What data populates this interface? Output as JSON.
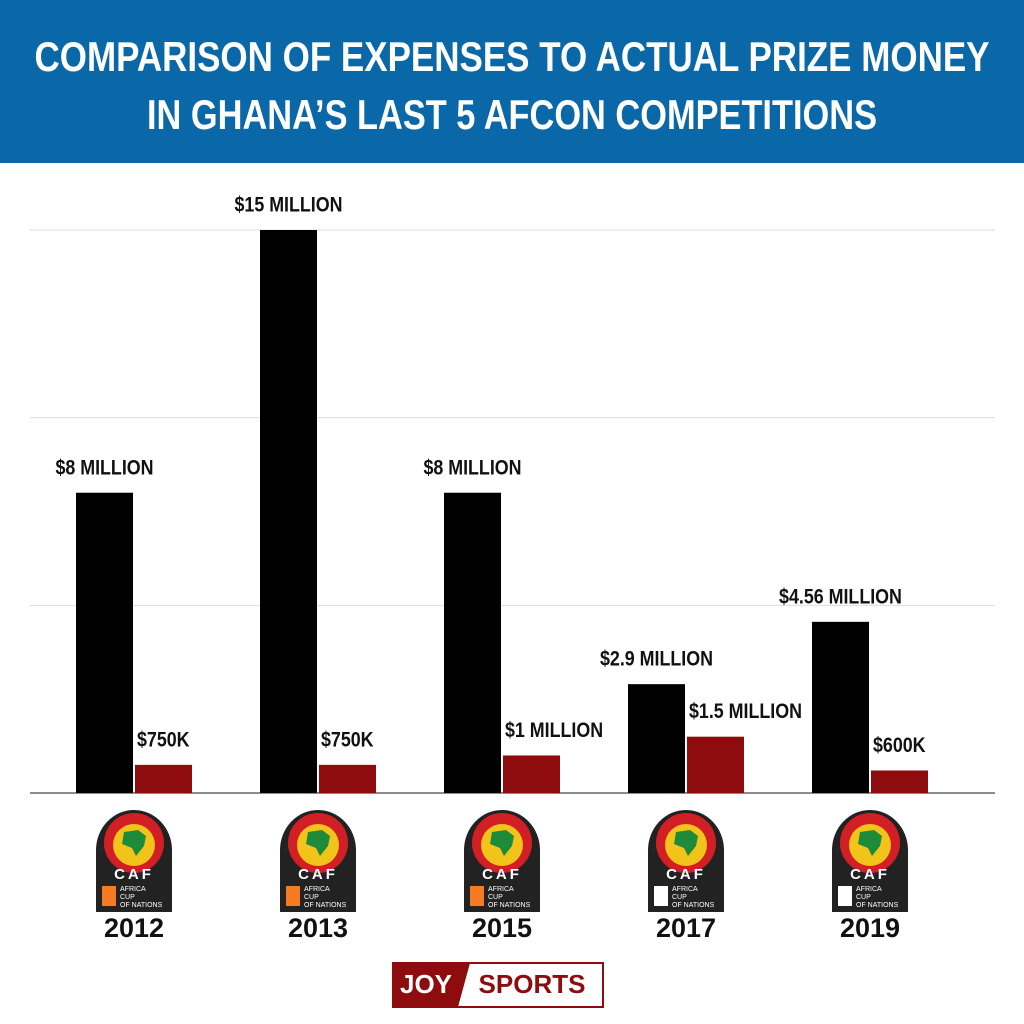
{
  "chart_data": {
    "type": "bar",
    "title": [
      "COMPARISON OF EXPENSES TO ACTUAL PRIZE MONEY",
      "IN GHANA’S LAST 5 AFCON COMPETITIONS"
    ],
    "categories": [
      "2012",
      "2013",
      "2015",
      "2017",
      "2019"
    ],
    "series": [
      {
        "color": "#000000",
        "values": [
          8,
          15,
          8,
          2.9,
          4.56
        ],
        "value_labels": [
          "$8 MILLION",
          "$15 MILLION",
          "$8 MILLION",
          "$2.9 MILLION",
          "$4.56 MILLION"
        ]
      },
      {
        "color": "#8e0c0e",
        "values": [
          0.75,
          0.75,
          1,
          1.5,
          0.6
        ],
        "value_labels": [
          "$750K",
          "$750K",
          "$1 MILLION",
          "$1.5 MILLION",
          "$600K"
        ]
      }
    ],
    "ylim": [
      0,
      15
    ],
    "yticks": [
      0,
      5,
      10,
      15
    ],
    "grid": true,
    "badge": {
      "label": "CAF",
      "caption": [
        "AFRICA",
        "CUP",
        "OF NATIONS"
      ]
    },
    "brand": [
      "JOY",
      "SPORTS"
    ]
  }
}
